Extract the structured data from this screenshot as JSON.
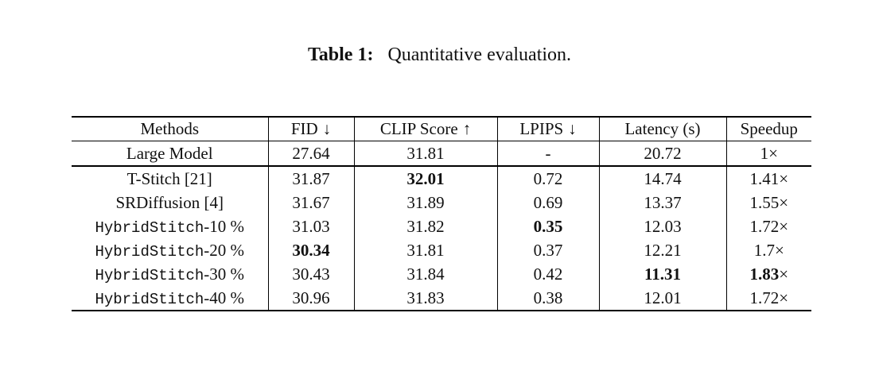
{
  "colors": {
    "background": "#ffffff",
    "text": "#111111",
    "rule": "#000000"
  },
  "caption": {
    "label": "Table 1:",
    "text": "Quantitative evaluation."
  },
  "table": {
    "headers": [
      {
        "label": "Methods",
        "arrow": ""
      },
      {
        "label": "FID",
        "arrow": "↓"
      },
      {
        "label": "CLIP Score",
        "arrow": "↑"
      },
      {
        "label": "LPIPS",
        "arrow": "↓"
      },
      {
        "label": "Latency (s)",
        "arrow": ""
      },
      {
        "label": "Speedup",
        "arrow": ""
      }
    ],
    "rows": [
      {
        "section": "baseline",
        "method": {
          "parts": [
            {
              "text": "Large Model"
            }
          ]
        },
        "cells": [
          {
            "parts": [
              {
                "text": "27.64"
              }
            ]
          },
          {
            "parts": [
              {
                "text": "31.81"
              }
            ]
          },
          {
            "parts": [
              {
                "text": "-"
              }
            ]
          },
          {
            "parts": [
              {
                "text": "20.72"
              }
            ]
          },
          {
            "parts": [
              {
                "text": "1×"
              }
            ]
          }
        ]
      },
      {
        "section": "methods",
        "method": {
          "parts": [
            {
              "text": "T-Stitch [21]"
            }
          ]
        },
        "cells": [
          {
            "parts": [
              {
                "text": "31.87"
              }
            ]
          },
          {
            "parts": [
              {
                "text": "32.01",
                "bold": true
              }
            ]
          },
          {
            "parts": [
              {
                "text": "0.72"
              }
            ]
          },
          {
            "parts": [
              {
                "text": "14.74"
              }
            ]
          },
          {
            "parts": [
              {
                "text": "1.41×"
              }
            ]
          }
        ]
      },
      {
        "section": "methods",
        "method": {
          "parts": [
            {
              "text": "SRDiffusion [4]"
            }
          ]
        },
        "cells": [
          {
            "parts": [
              {
                "text": "31.67"
              }
            ]
          },
          {
            "parts": [
              {
                "text": "31.89"
              }
            ]
          },
          {
            "parts": [
              {
                "text": "0.69"
              }
            ]
          },
          {
            "parts": [
              {
                "text": "13.37"
              }
            ]
          },
          {
            "parts": [
              {
                "text": "1.55×"
              }
            ]
          }
        ]
      },
      {
        "section": "methods",
        "method": {
          "parts": [
            {
              "text": "HybridStitch",
              "font": "mono"
            },
            {
              "text": "-10 %"
            }
          ]
        },
        "cells": [
          {
            "parts": [
              {
                "text": "31.03"
              }
            ]
          },
          {
            "parts": [
              {
                "text": "31.82"
              }
            ]
          },
          {
            "parts": [
              {
                "text": "0.35",
                "bold": true
              }
            ]
          },
          {
            "parts": [
              {
                "text": "12.03"
              }
            ]
          },
          {
            "parts": [
              {
                "text": "1.72×"
              }
            ]
          }
        ]
      },
      {
        "section": "methods",
        "method": {
          "parts": [
            {
              "text": "HybridStitch",
              "font": "mono"
            },
            {
              "text": "-20 %"
            }
          ]
        },
        "cells": [
          {
            "parts": [
              {
                "text": "30.34",
                "bold": true
              }
            ]
          },
          {
            "parts": [
              {
                "text": "31.81"
              }
            ]
          },
          {
            "parts": [
              {
                "text": "0.37"
              }
            ]
          },
          {
            "parts": [
              {
                "text": "12.21"
              }
            ]
          },
          {
            "parts": [
              {
                "text": "1.7×"
              }
            ]
          }
        ]
      },
      {
        "section": "methods",
        "method": {
          "parts": [
            {
              "text": "HybridStitch",
              "font": "mono"
            },
            {
              "text": "-30 %"
            }
          ]
        },
        "cells": [
          {
            "parts": [
              {
                "text": "30.43"
              }
            ]
          },
          {
            "parts": [
              {
                "text": "31.84"
              }
            ]
          },
          {
            "parts": [
              {
                "text": "0.42"
              }
            ]
          },
          {
            "parts": [
              {
                "text": "11.31",
                "bold": true
              }
            ]
          },
          {
            "parts": [
              {
                "text": "1.83",
                "bold": true
              },
              {
                "text": "×"
              }
            ]
          }
        ]
      },
      {
        "section": "methods",
        "method": {
          "parts": [
            {
              "text": "HybridStitch",
              "font": "mono"
            },
            {
              "text": "-40 %"
            }
          ]
        },
        "cells": [
          {
            "parts": [
              {
                "text": "30.96"
              }
            ]
          },
          {
            "parts": [
              {
                "text": "31.83"
              }
            ]
          },
          {
            "parts": [
              {
                "text": "0.38"
              }
            ]
          },
          {
            "parts": [
              {
                "text": "12.01"
              }
            ]
          },
          {
            "parts": [
              {
                "text": "1.72×"
              }
            ]
          }
        ]
      }
    ]
  }
}
